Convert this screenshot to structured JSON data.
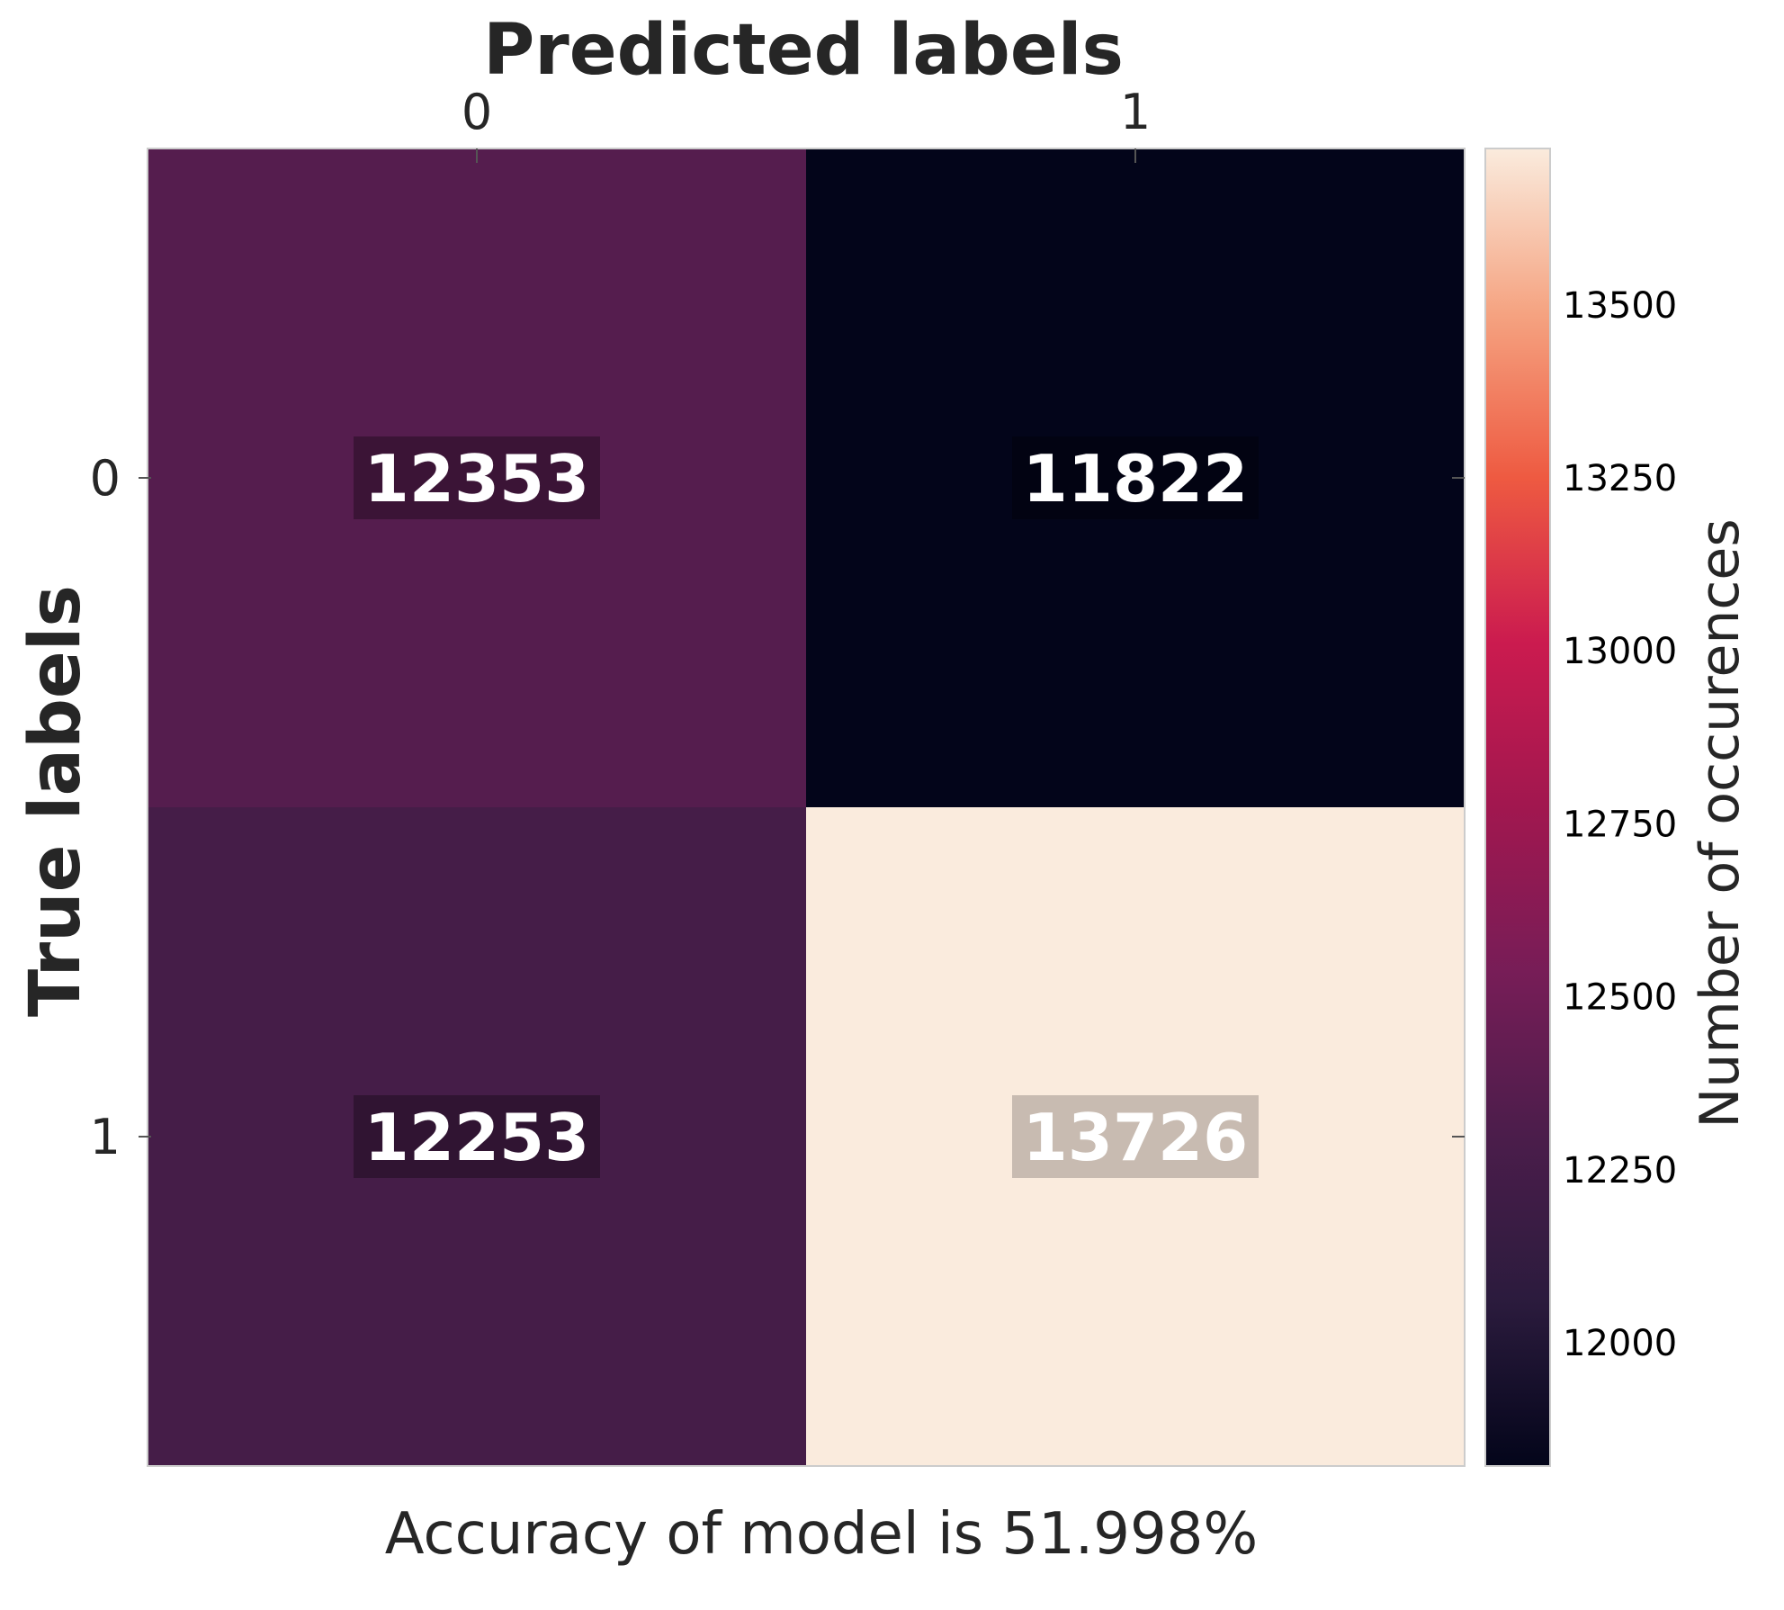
{
  "chart_data": {
    "type": "heatmap",
    "title": "",
    "xlabel": "Predicted labels",
    "ylabel": "True labels",
    "x_categories": [
      "0",
      "1"
    ],
    "y_categories": [
      "0",
      "1"
    ],
    "values": [
      [
        12353,
        11822
      ],
      [
        12253,
        13726
      ]
    ],
    "annotation_labels": [
      [
        "12353",
        "11822"
      ],
      [
        "12253",
        "13726"
      ]
    ],
    "caption": "Accuracy of model is 51.998%",
    "colorbar": {
      "label": "Number of occurences",
      "range": [
        11822,
        13726
      ],
      "ticks": [
        12000,
        12250,
        12500,
        12750,
        13000,
        13250,
        13500
      ],
      "tick_labels": [
        "12000",
        "12250",
        "12500",
        "12750",
        "13000",
        "13250",
        "13500"
      ],
      "colormap": "rocket",
      "colormap_stops": [
        {
          "value": 0.0,
          "color": "#03051a"
        },
        {
          "value": 0.125,
          "color": "#2b1b3d"
        },
        {
          "value": 0.25,
          "color": "#4b1d4b"
        },
        {
          "value": 0.375,
          "color": "#771d57"
        },
        {
          "value": 0.5,
          "color": "#a1174f"
        },
        {
          "value": 0.625,
          "color": "#cb1b4f"
        },
        {
          "value": 0.75,
          "color": "#ee5a41"
        },
        {
          "value": 0.875,
          "color": "#f5a381"
        },
        {
          "value": 1.0,
          "color": "#faebdd"
        }
      ]
    },
    "grid": false
  }
}
